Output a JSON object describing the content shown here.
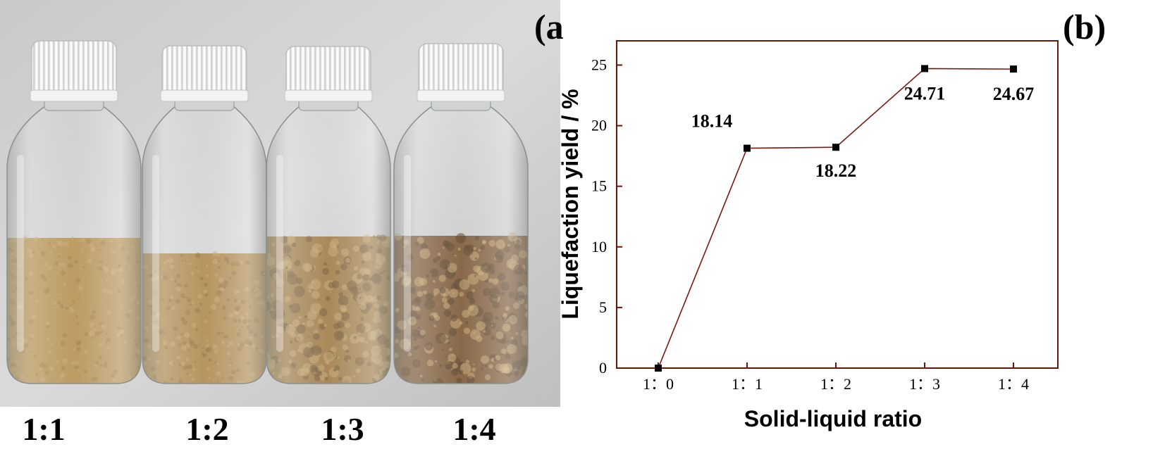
{
  "photo": {
    "panel_label": "(a)",
    "bottles": [
      {
        "label": "1:1",
        "powder_color": "#b8904f",
        "powder_dark": "#9c7640"
      },
      {
        "label": "1:2",
        "powder_color": "#b1884a",
        "powder_dark": "#8f6a36"
      },
      {
        "label": "1:3",
        "powder_color": "#a17a43",
        "powder_dark": "#6e4f2a"
      },
      {
        "label": "1:4",
        "powder_color": "#7b5430",
        "powder_dark": "#4f331b"
      }
    ]
  },
  "chart_data": {
    "type": "line",
    "panel_label": "(b)",
    "xlabel": "Solid-liquid ratio",
    "ylabel": "Liquefaction yield / %",
    "categories": [
      "1：0",
      "1：1",
      "1：2",
      "1：3",
      "1：4"
    ],
    "values": [
      0,
      18.14,
      18.22,
      24.71,
      24.67
    ],
    "data_labels": [
      "",
      "18.14",
      "18.22",
      "24.71",
      "24.67"
    ],
    "ylim": [
      0,
      27
    ],
    "yticks": [
      0,
      5,
      10,
      15,
      20,
      25
    ],
    "grid": false,
    "line_color": "#7a1a10",
    "marker_color": "#000000",
    "frame_color": "#6b1408"
  }
}
